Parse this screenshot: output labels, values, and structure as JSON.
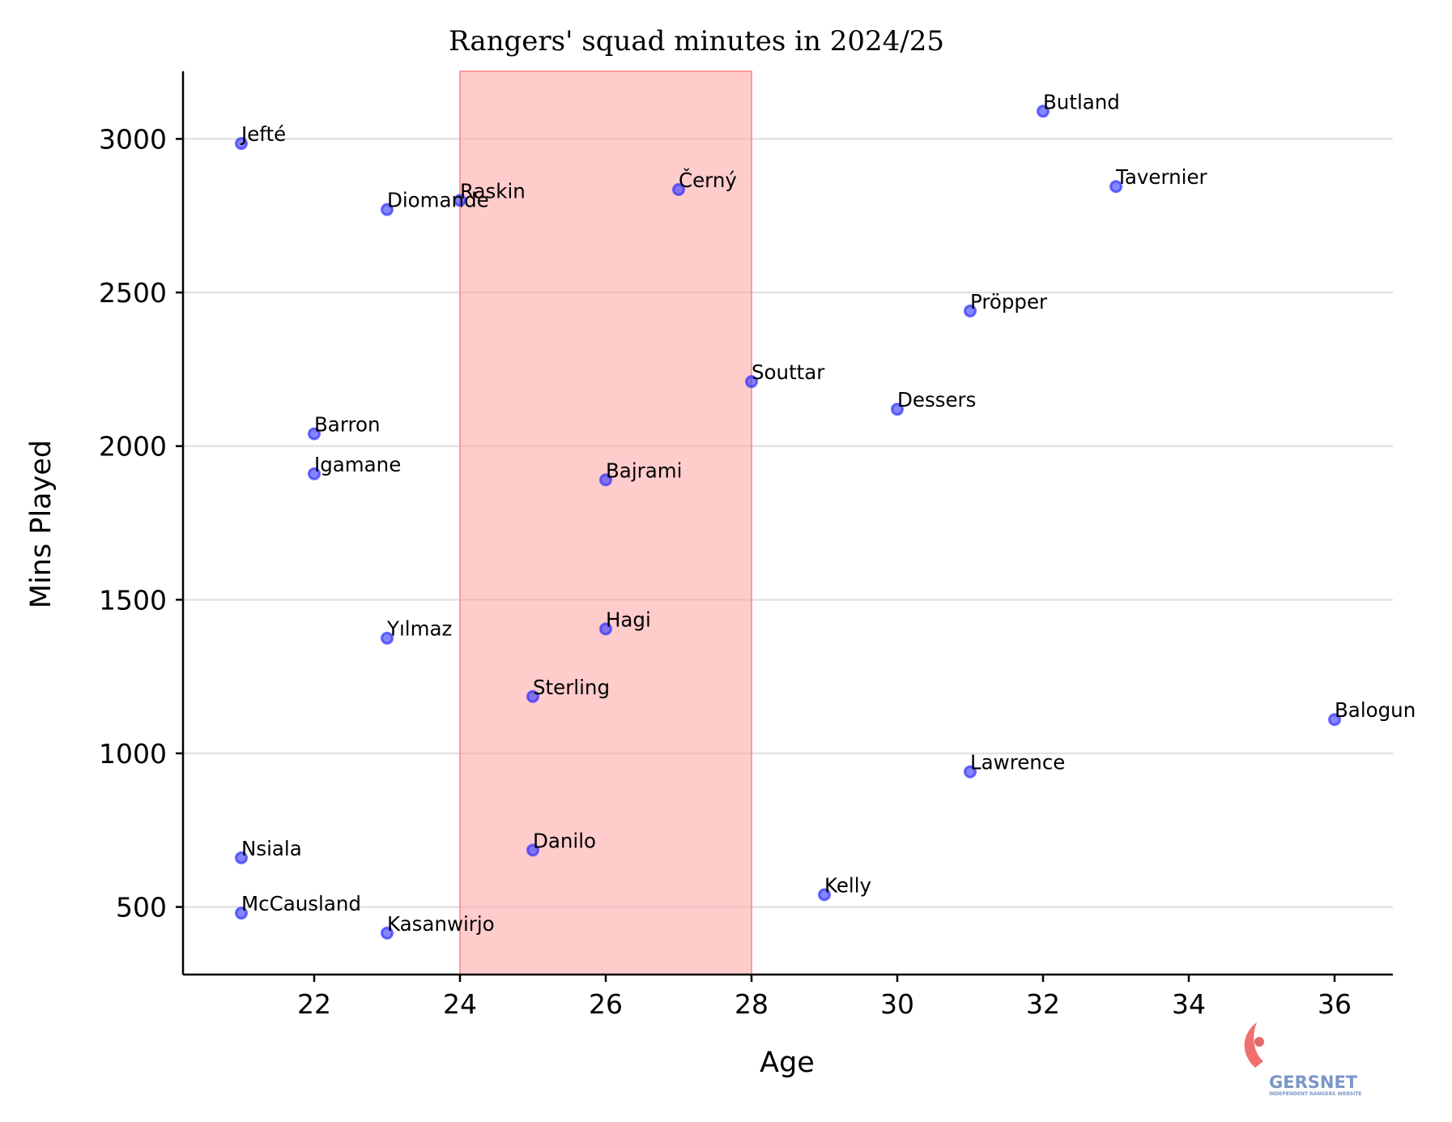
{
  "chart_data": {
    "type": "scatter",
    "title": "Rangers' squad minutes in 2024/25",
    "xlabel": "Age",
    "ylabel": "Mins Played",
    "xlim": [
      20.2,
      36.8
    ],
    "ylim": [
      280,
      3220
    ],
    "xticks": [
      22,
      24,
      26,
      28,
      30,
      32,
      34,
      36
    ],
    "yticks": [
      500,
      1000,
      1500,
      2000,
      2500,
      3000
    ],
    "grid": "horizontal",
    "highlight_band": {
      "x_start": 24,
      "x_end": 28,
      "color": "#ff9999"
    },
    "marker_color": "#3333ff",
    "points": [
      {
        "name": "Jefté",
        "x": 21,
        "y": 2985
      },
      {
        "name": "Nsiala",
        "x": 21,
        "y": 660
      },
      {
        "name": "McCausland",
        "x": 21,
        "y": 480
      },
      {
        "name": "Barron",
        "x": 22,
        "y": 2040
      },
      {
        "name": "Igamane",
        "x": 22,
        "y": 1910
      },
      {
        "name": "Diomande",
        "x": 23,
        "y": 2770
      },
      {
        "name": "Yılmaz",
        "x": 23,
        "y": 1375
      },
      {
        "name": "Kasanwirjo",
        "x": 23,
        "y": 415
      },
      {
        "name": "Raskin",
        "x": 24,
        "y": 2800
      },
      {
        "name": "Sterling",
        "x": 25,
        "y": 1185
      },
      {
        "name": "Danilo",
        "x": 25,
        "y": 685
      },
      {
        "name": "Bajrami",
        "x": 26,
        "y": 1890
      },
      {
        "name": "Hagi",
        "x": 26,
        "y": 1405
      },
      {
        "name": "Černý",
        "x": 27,
        "y": 2835
      },
      {
        "name": "Souttar",
        "x": 28,
        "y": 2210
      },
      {
        "name": "Kelly",
        "x": 29,
        "y": 540
      },
      {
        "name": "Dessers",
        "x": 30,
        "y": 2120
      },
      {
        "name": "Pröpper",
        "x": 31,
        "y": 2440
      },
      {
        "name": "Lawrence",
        "x": 31,
        "y": 940
      },
      {
        "name": "Butland",
        "x": 32,
        "y": 3090
      },
      {
        "name": "Tavernier",
        "x": 33,
        "y": 2845
      },
      {
        "name": "Balogun",
        "x": 36,
        "y": 1110
      }
    ]
  },
  "watermark": {
    "name": "GERSNET",
    "tagline": "INDEPENDENT RANGERS WEBSITE"
  }
}
